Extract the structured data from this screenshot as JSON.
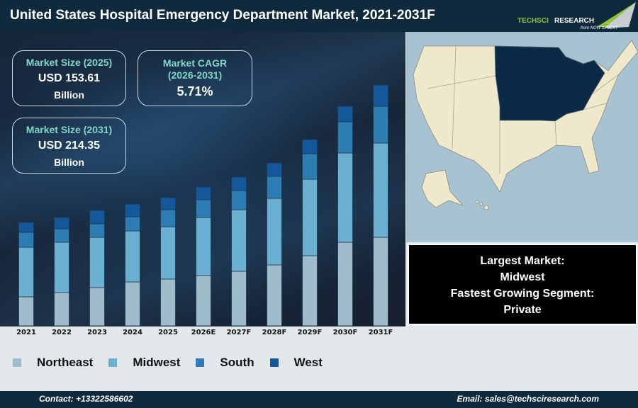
{
  "header": {
    "title": "United States Hospital Emergency Department Market, 2021-2031F",
    "logo_text": "TECHSCI RESEARCH",
    "logo_tagline": "from NOW to NEXT"
  },
  "kpis": [
    {
      "label": "Market Size (2025)",
      "value": "USD 153.61",
      "unit": "Billion"
    },
    {
      "label": "Market CAGR (2026-2031)",
      "value": "5.71%"
    },
    {
      "label": "Market Size (2031)",
      "value": "USD 214.35",
      "unit": "Billion"
    }
  ],
  "info": {
    "largest_label": "Largest Market:",
    "largest_value": "Midwest",
    "fastest_label": "Fastest Growing Segment:",
    "fastest_value": "Private"
  },
  "map": {
    "highlight_region": "Midwest",
    "highlight_color": "#0b2a45",
    "base_color": "#efe8cb",
    "water_color": "#a7c3d2"
  },
  "footer": {
    "contact": "Contact: +13322586602",
    "email": "Email: sales@techsciresearch.com"
  },
  "chart_data": {
    "type": "bar",
    "stacked": true,
    "categories": [
      "2021",
      "2022",
      "2023",
      "2024",
      "2025",
      "2026E",
      "2027F",
      "2028F",
      "2029F",
      "2030F",
      "2031F"
    ],
    "series": [
      {
        "name": "Northeast",
        "color": "#9fbccb",
        "values": [
          41,
          47,
          54,
          62,
          66,
          71,
          77,
          86,
          99,
          118,
          125
        ]
      },
      {
        "name": "Midwest",
        "color": "#6bb0d0",
        "values": [
          70,
          71,
          71,
          72,
          74,
          82,
          87,
          94,
          108,
          126,
          133
        ]
      },
      {
        "name": "South",
        "color": "#2d7db4",
        "values": [
          21,
          19,
          19,
          20,
          24,
          25,
          27,
          31,
          36,
          44,
          52
        ]
      },
      {
        "name": "West",
        "color": "#14579a",
        "values": [
          14,
          16,
          19,
          18,
          17,
          18,
          19,
          19,
          20,
          22,
          30
        ]
      }
    ],
    "ylim": [
      0,
      350
    ],
    "grid": false,
    "legend": "bottom-left"
  }
}
